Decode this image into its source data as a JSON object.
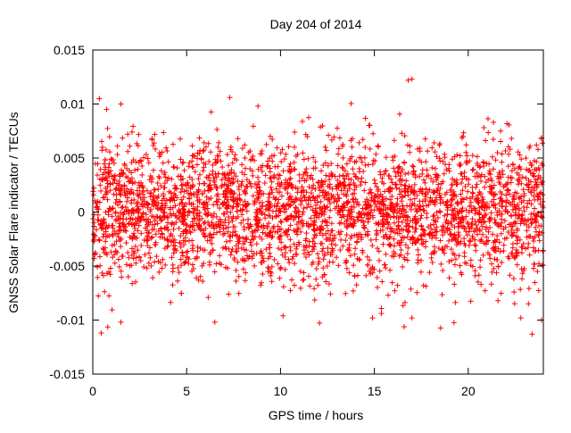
{
  "chart_data": {
    "type": "scatter",
    "title": "Day 204 of 2014",
    "xlabel": "GPS time / hours",
    "ylabel": "GNSS Solar Flare indicator / TECUs",
    "xlim": [
      0,
      24
    ],
    "ylim": [
      -0.015,
      0.015
    ],
    "xticks": [
      0,
      5,
      10,
      15,
      20
    ],
    "xtick_labels": [
      "0",
      "5",
      "10",
      "15",
      "20"
    ],
    "yticks": [
      -0.015,
      -0.01,
      -0.005,
      0,
      0.005,
      0.01,
      0.015
    ],
    "ytick_labels": [
      "-0.015",
      "-0.01",
      "-0.005",
      "0",
      "0.005",
      "0.01",
      "0.015"
    ],
    "grid": false,
    "marker": "+",
    "marker_color": "#ff0000",
    "series": [
      {
        "name": "GNSS Solar Flare indicator",
        "color": "#ff0000",
        "notable_points": [
          {
            "x": 0.35,
            "y": 0.0105
          },
          {
            "x": 0.45,
            "y": -0.0112
          },
          {
            "x": 1.5,
            "y": 0.01
          },
          {
            "x": 1.5,
            "y": -0.0102
          },
          {
            "x": 6.5,
            "y": -0.0102
          },
          {
            "x": 7.3,
            "y": 0.0106
          },
          {
            "x": 8.8,
            "y": 0.0098
          },
          {
            "x": 14.9,
            "y": -0.0098
          },
          {
            "x": 16.8,
            "y": 0.0122
          },
          {
            "x": 17.0,
            "y": 0.0123
          },
          {
            "x": 17.0,
            "y": -0.0098
          },
          {
            "x": 22.8,
            "y": -0.0098
          },
          {
            "x": 23.4,
            "y": -0.0113
          },
          {
            "x": 23.9,
            "y": -0.01
          }
        ],
        "bulk": {
          "count": 3200,
          "x_range": [
            0,
            24
          ],
          "mean": 0,
          "std": 0.0032,
          "cutoff": 0.0108
        }
      }
    ]
  }
}
